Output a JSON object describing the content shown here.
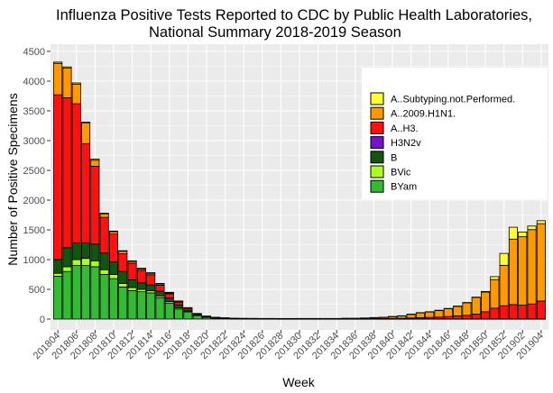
{
  "chart_data": {
    "type": "bar",
    "stacked": true,
    "title": "Influenza Positive Tests Reported to CDC by Public Health Laboratories,",
    "subtitle": "National Summary 2018-2019 Season",
    "xlabel": "Week",
    "ylabel": "Number of Positive Specimens",
    "ylim": [
      0,
      4500
    ],
    "yticks": [
      0,
      500,
      1000,
      1500,
      2000,
      2500,
      3000,
      3500,
      4000,
      4500
    ],
    "grid": true,
    "legend_position": "top-right",
    "tick_labels": [
      "201804",
      "201806",
      "201808",
      "201810",
      "201812",
      "201814",
      "201816",
      "201818",
      "201820",
      "201822",
      "201824",
      "201826",
      "201828",
      "201830",
      "201832",
      "201834",
      "201836",
      "201838",
      "201840",
      "201842",
      "201844",
      "201846",
      "201848",
      "201850",
      "201852",
      "201902",
      "201904"
    ],
    "categories": [
      "201804",
      "201805",
      "201806",
      "201807",
      "201808",
      "201809",
      "201810",
      "201811",
      "201812",
      "201813",
      "201814",
      "201815",
      "201816",
      "201817",
      "201818",
      "201819",
      "201820",
      "201821",
      "201822",
      "201823",
      "201824",
      "201825",
      "201826",
      "201827",
      "201828",
      "201829",
      "201830",
      "201831",
      "201832",
      "201833",
      "201834",
      "201835",
      "201836",
      "201837",
      "201838",
      "201839",
      "201840",
      "201841",
      "201842",
      "201843",
      "201844",
      "201845",
      "201846",
      "201847",
      "201848",
      "201849",
      "201850",
      "201851",
      "201852",
      "201901",
      "201902",
      "201903",
      "201904"
    ],
    "series": [
      {
        "name": "BYam",
        "color": "#33bb33",
        "values": [
          720,
          800,
          900,
          900,
          880,
          750,
          680,
          540,
          480,
          460,
          440,
          360,
          270,
          170,
          120,
          60,
          30,
          15,
          10,
          6,
          5,
          4,
          3,
          3,
          2,
          2,
          2,
          2,
          2,
          2,
          2,
          2,
          2,
          2,
          2,
          2,
          2,
          2,
          2,
          2,
          2,
          2,
          2,
          2,
          2,
          2,
          2,
          2,
          2,
          2,
          2,
          2,
          2
        ]
      },
      {
        "name": "BVic",
        "color": "#aaff22",
        "values": [
          50,
          80,
          100,
          120,
          100,
          80,
          70,
          60,
          50,
          40,
          35,
          30,
          25,
          20,
          10,
          5,
          3,
          2,
          2,
          1,
          1,
          1,
          1,
          1,
          1,
          1,
          1,
          1,
          1,
          1,
          1,
          1,
          1,
          1,
          1,
          1,
          1,
          1,
          1,
          1,
          1,
          1,
          1,
          1,
          1,
          1,
          1,
          1,
          1,
          1,
          1,
          1,
          1
        ]
      },
      {
        "name": "B",
        "color": "#115511",
        "values": [
          230,
          320,
          280,
          260,
          280,
          280,
          210,
          200,
          130,
          110,
          100,
          80,
          60,
          50,
          20,
          10,
          5,
          3,
          2,
          1,
          1,
          1,
          1,
          1,
          1,
          1,
          1,
          1,
          1,
          1,
          1,
          1,
          1,
          1,
          1,
          1,
          1,
          1,
          1,
          1,
          1,
          1,
          1,
          1,
          1,
          1,
          1,
          1,
          1,
          1,
          1,
          1,
          1
        ]
      },
      {
        "name": "H3N2v",
        "color": "#7711cc",
        "values": [
          0,
          0,
          0,
          0,
          0,
          0,
          0,
          0,
          0,
          0,
          0,
          0,
          0,
          0,
          0,
          0,
          0,
          0,
          0,
          0,
          0,
          0,
          0,
          0,
          0,
          0,
          0,
          0,
          0,
          0,
          0,
          0,
          0,
          0,
          0,
          0,
          0,
          0,
          0,
          0,
          0,
          0,
          0,
          0,
          0,
          0,
          0,
          0,
          0,
          0,
          0,
          0,
          0
        ]
      },
      {
        "name": "A..H3.",
        "color": "#ff1111",
        "values": [
          2770,
          2520,
          2340,
          1670,
          1310,
          600,
          470,
          300,
          280,
          210,
          170,
          100,
          70,
          45,
          30,
          10,
          5,
          3,
          3,
          2,
          2,
          2,
          2,
          2,
          2,
          2,
          2,
          2,
          2,
          2,
          2,
          3,
          3,
          3,
          5,
          5,
          8,
          10,
          15,
          20,
          25,
          30,
          40,
          50,
          60,
          80,
          120,
          180,
          220,
          240,
          230,
          250,
          300
        ]
      },
      {
        "name": "A..2009.H1N1.",
        "color": "#ff9900",
        "values": [
          530,
          500,
          330,
          350,
          100,
          60,
          40,
          40,
          30,
          25,
          25,
          20,
          15,
          15,
          8,
          5,
          4,
          3,
          2,
          2,
          2,
          2,
          2,
          2,
          2,
          2,
          3,
          3,
          3,
          3,
          3,
          5,
          5,
          10,
          15,
          20,
          30,
          40,
          60,
          80,
          90,
          110,
          130,
          160,
          210,
          280,
          330,
          480,
          680,
          1100,
          1150,
          1250,
          1300
        ]
      },
      {
        "name": "A..Subtyping.not.Performed.",
        "color": "#ffff33",
        "values": [
          20,
          20,
          20,
          10,
          20,
          10,
          10,
          10,
          10,
          10,
          10,
          10,
          10,
          5,
          5,
          5,
          5,
          5,
          3,
          3,
          2,
          2,
          2,
          2,
          2,
          2,
          2,
          2,
          2,
          2,
          2,
          2,
          2,
          2,
          2,
          2,
          2,
          2,
          5,
          5,
          5,
          5,
          5,
          5,
          5,
          5,
          10,
          50,
          200,
          200,
          80,
          60,
          50
        ]
      }
    ]
  }
}
